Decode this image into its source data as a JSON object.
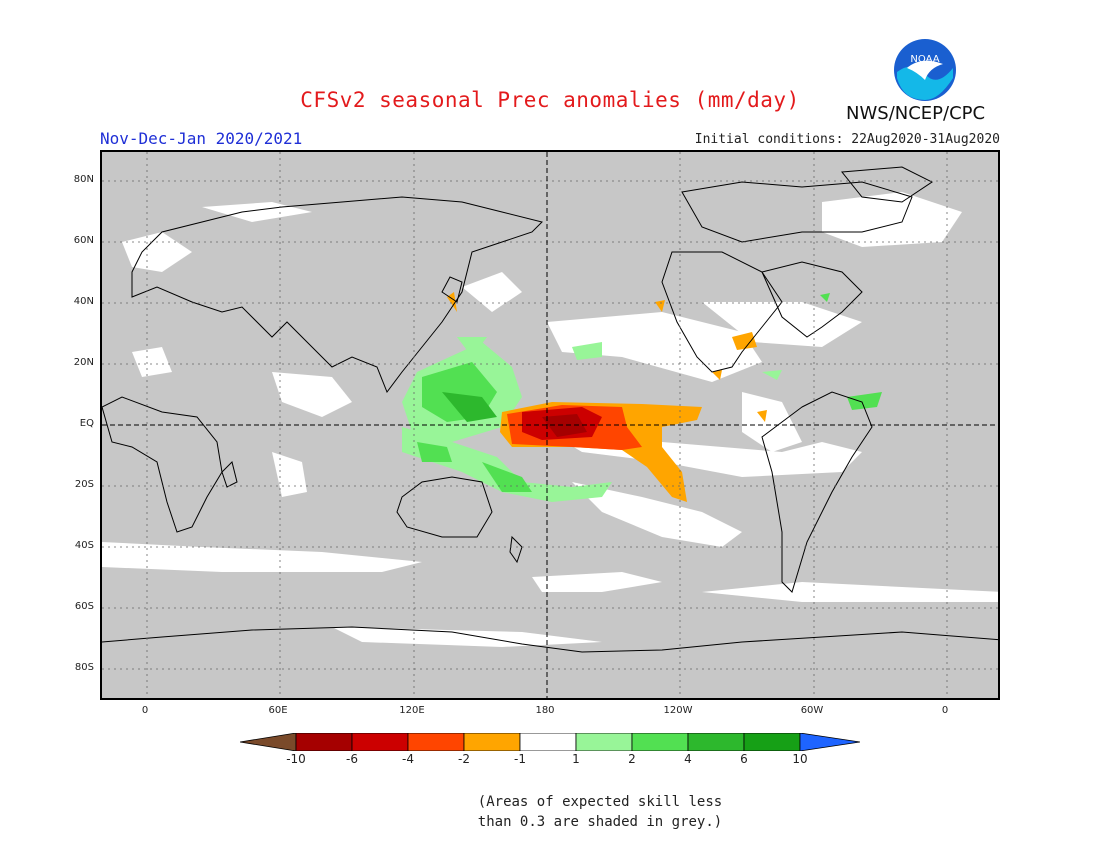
{
  "title": "CFSv2 seasonal Prec anomalies (mm/day)",
  "season": "Nov-Dec-Jan 2020/2021",
  "initial_conditions": "Initial conditions: 22Aug2020-31Aug2020",
  "agency": "NWS/NCEP/CPC",
  "logo_text": "NOAA",
  "lat_labels": [
    "80N",
    "60N",
    "40N",
    "20N",
    "EQ",
    "20S",
    "40S",
    "60S",
    "80S"
  ],
  "lon_labels": [
    "0",
    "60E",
    "120E",
    "180",
    "120W",
    "60W",
    "0"
  ],
  "colorbar": {
    "labels": [
      "-10",
      "-6",
      "-4",
      "-2",
      "-1",
      "1",
      "2",
      "4",
      "6",
      "10"
    ],
    "colors": [
      "#7a4a2a",
      "#a50000",
      "#cc0000",
      "#ff4500",
      "#ffa500",
      "#ffffff",
      "#98f598",
      "#52e052",
      "#2db82d",
      "#16a016",
      "#1e64ff"
    ]
  },
  "note_line1": "(Areas of expected skill less",
  "note_line2": "than 0.3 are shaded in grey.)"
}
